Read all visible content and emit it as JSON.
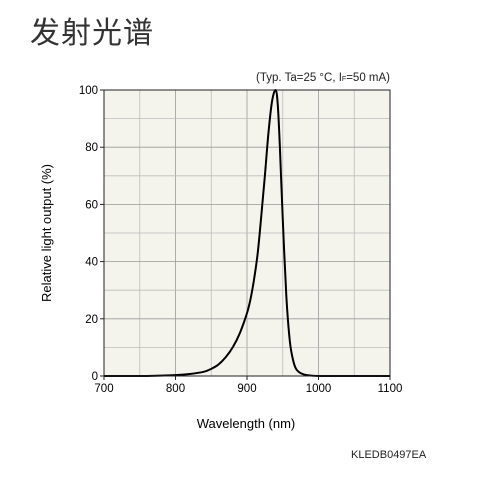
{
  "page": {
    "title": "发射光谱"
  },
  "conditions": {
    "prefix": "(Typ. Ta=25 °C, I",
    "subscript": "F",
    "suffix": "=50 mA)"
  },
  "figure_code": "KLEDB0497EA",
  "chart_data": {
    "type": "line",
    "title": "",
    "xlabel": "Wavelength (nm)",
    "ylabel": "Relative light output (%)",
    "xlim": [
      700,
      1100
    ],
    "ylim": [
      0,
      100
    ],
    "x_ticks": [
      700,
      800,
      900,
      1000,
      1100
    ],
    "y_ticks": [
      0,
      20,
      40,
      60,
      80,
      100
    ],
    "x_tick_labels": [
      "700",
      "800",
      "900",
      "1000",
      "1100"
    ],
    "y_tick_labels": [
      "0",
      "20",
      "40",
      "60",
      "80",
      "100"
    ],
    "grid": true,
    "plot_background": "#f4f3ec",
    "line_color": "#000000",
    "series": [
      {
        "x": [
          700,
          760,
          800,
          820,
          840,
          850,
          860,
          870,
          880,
          890,
          900,
          905,
          910,
          915,
          920,
          925,
          930,
          935,
          940,
          943,
          946,
          950,
          955,
          960,
          965,
          970,
          980,
          1000,
          1050,
          1100
        ],
        "y": [
          0,
          0,
          0.3,
          0.7,
          1.5,
          2.5,
          4,
          6.5,
          10,
          15,
          22,
          27,
          34,
          43,
          56,
          70,
          85,
          96,
          100,
          95,
          80,
          55,
          28,
          12,
          5,
          2,
          0.5,
          0,
          0,
          0
        ]
      }
    ]
  }
}
